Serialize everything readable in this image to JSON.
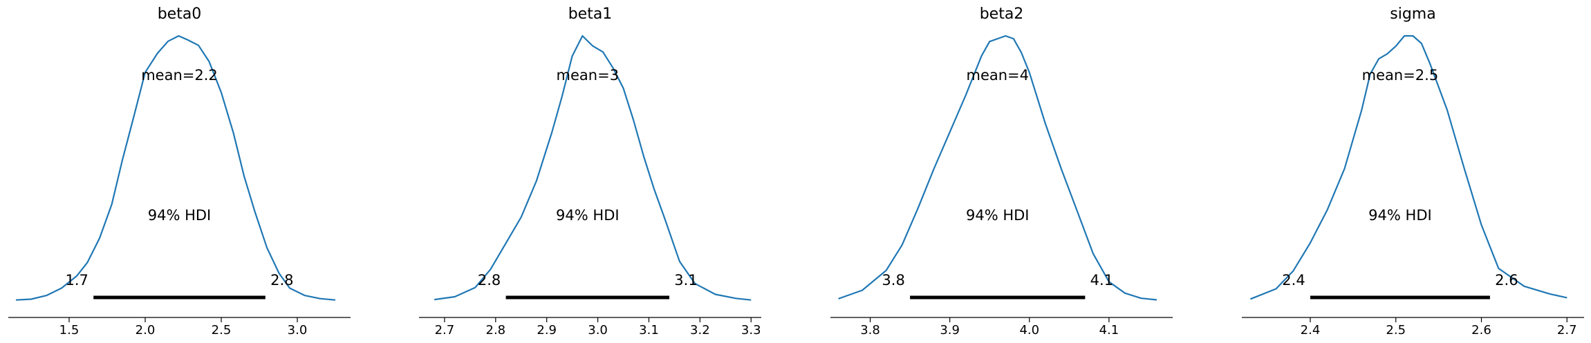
{
  "chart_data": [
    {
      "type": "line",
      "title": "beta0",
      "mean_label": "mean=2.2",
      "hdi_label": "94% HDI",
      "hdi": [
        1.66,
        2.79
      ],
      "hdi_low_label": "1.7",
      "hdi_high_label": "2.8",
      "xlim": [
        1.1,
        3.35
      ],
      "xticks": [
        1.5,
        2.0,
        2.5,
        3.0
      ],
      "xtick_labels": [
        "1.5",
        "2.0",
        "2.5",
        "3.0"
      ],
      "x": [
        1.15,
        1.25,
        1.35,
        1.45,
        1.55,
        1.62,
        1.7,
        1.78,
        1.85,
        1.92,
        2.0,
        2.08,
        2.15,
        2.22,
        2.28,
        2.35,
        2.42,
        2.5,
        2.58,
        2.65,
        2.72,
        2.8,
        2.88,
        2.95,
        3.05,
        3.15,
        3.25
      ],
      "y": [
        0.012,
        0.018,
        0.045,
        0.1,
        0.19,
        0.29,
        0.47,
        0.72,
        1.05,
        1.35,
        1.7,
        1.84,
        1.93,
        1.97,
        1.94,
        1.9,
        1.78,
        1.55,
        1.25,
        0.93,
        0.67,
        0.4,
        0.21,
        0.1,
        0.045,
        0.022,
        0.012
      ]
    },
    {
      "type": "line",
      "title": "beta1",
      "mean_label": "mean=3",
      "hdi_label": "94% HDI",
      "hdi": [
        2.82,
        3.14
      ],
      "hdi_low_label": "2.8",
      "hdi_high_label": "3.1",
      "xlim": [
        2.65,
        3.32
      ],
      "xticks": [
        2.7,
        2.8,
        2.9,
        3.0,
        3.1,
        3.2,
        3.3
      ],
      "xtick_labels": [
        "2.7",
        "2.8",
        "2.9",
        "3.0",
        "3.1",
        "3.2",
        "3.3"
      ],
      "x": [
        2.68,
        2.72,
        2.76,
        2.79,
        2.82,
        2.85,
        2.88,
        2.91,
        2.93,
        2.95,
        2.97,
        2.99,
        3.01,
        3.03,
        3.05,
        3.07,
        3.09,
        3.11,
        3.13,
        3.16,
        3.19,
        3.23,
        3.27,
        3.3
      ],
      "y": [
        0.05,
        0.12,
        0.35,
        0.8,
        1.45,
        2.1,
        3.0,
        4.2,
        5.1,
        6.1,
        6.6,
        6.35,
        6.2,
        5.8,
        5.3,
        4.5,
        3.6,
        2.8,
        2.1,
        1.0,
        0.45,
        0.18,
        0.08,
        0.04
      ]
    },
    {
      "type": "line",
      "title": "beta2",
      "mean_label": "mean=4",
      "hdi_label": "94% HDI",
      "hdi": [
        3.85,
        4.07
      ],
      "hdi_low_label": "3.8",
      "hdi_high_label": "4.1",
      "xlim": [
        3.75,
        4.18
      ],
      "xticks": [
        3.8,
        3.9,
        4.0,
        4.1
      ],
      "xtick_labels": [
        "3.8",
        "3.9",
        "4.0",
        "4.1"
      ],
      "x": [
        3.76,
        3.79,
        3.82,
        3.84,
        3.86,
        3.88,
        3.9,
        3.92,
        3.94,
        3.95,
        3.96,
        3.97,
        3.98,
        3.99,
        4.0,
        4.02,
        4.04,
        4.06,
        4.08,
        4.1,
        4.12,
        4.14,
        4.16
      ],
      "y": [
        0.1,
        0.4,
        1.1,
        2.0,
        3.3,
        4.7,
        6.0,
        7.3,
        8.7,
        9.2,
        9.3,
        9.4,
        9.3,
        8.8,
        8.1,
        6.3,
        4.7,
        3.2,
        1.7,
        0.7,
        0.3,
        0.12,
        0.06
      ]
    },
    {
      "type": "line",
      "title": "sigma",
      "mean_label": "mean=2.5",
      "hdi_label": "94% HDI",
      "hdi": [
        2.4,
        2.61
      ],
      "hdi_low_label": "2.4",
      "hdi_high_label": "2.6",
      "xlim": [
        2.32,
        2.72
      ],
      "xticks": [
        2.4,
        2.5,
        2.6,
        2.7
      ],
      "xtick_labels": [
        "2.4",
        "2.5",
        "2.6",
        "2.7"
      ],
      "x": [
        2.33,
        2.36,
        2.38,
        2.4,
        2.42,
        2.44,
        2.46,
        2.47,
        2.48,
        2.49,
        2.5,
        2.51,
        2.52,
        2.53,
        2.54,
        2.56,
        2.58,
        2.6,
        2.62,
        2.65,
        2.68,
        2.7
      ],
      "y": [
        0.1,
        0.5,
        1.2,
        2.3,
        3.6,
        5.2,
        7.5,
        8.9,
        9.5,
        9.7,
        10.0,
        10.4,
        10.4,
        10.1,
        9.3,
        7.5,
        5.2,
        3.0,
        1.3,
        0.6,
        0.3,
        0.15
      ]
    }
  ],
  "colors": {
    "kde": "#1f77b4",
    "hdi": "#000000",
    "axis": "#000000"
  }
}
